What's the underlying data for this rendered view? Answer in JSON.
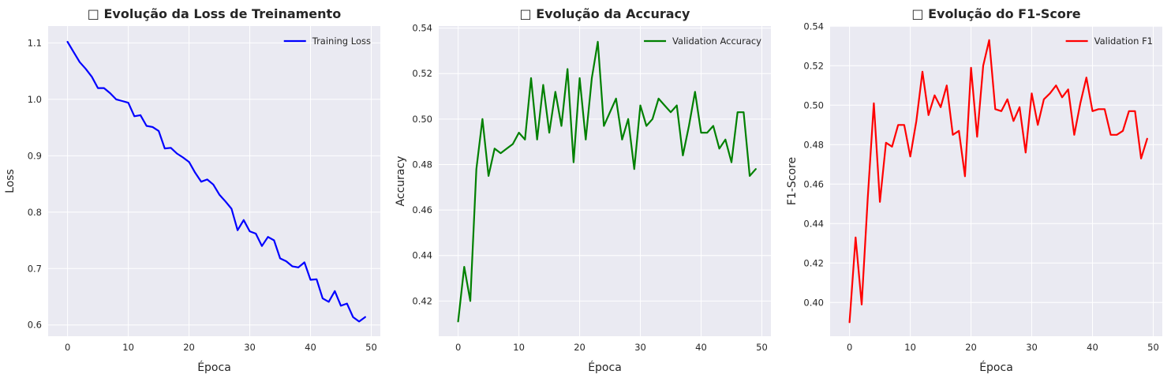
{
  "chart_data": [
    {
      "type": "line",
      "title": "□ Evolução da Loss de Treinamento",
      "xlabel": "Época",
      "ylabel": "Loss",
      "xlim": [
        -3.2,
        51.5
      ],
      "ylim": [
        0.58,
        1.13
      ],
      "xticks": [
        "0",
        "10",
        "20",
        "30",
        "40",
        "50"
      ],
      "yticks": [
        "0.6",
        "0.7",
        "0.8",
        "0.9",
        "1.0",
        "1.1"
      ],
      "grid": true,
      "legend": "top-right",
      "series": [
        {
          "name": "Training Loss",
          "color": "#0000ff",
          "x": [
            0,
            1,
            2,
            3,
            4,
            5,
            6,
            7,
            8,
            9,
            10,
            11,
            12,
            13,
            14,
            15,
            16,
            17,
            18,
            19,
            20,
            21,
            22,
            23,
            24,
            25,
            26,
            27,
            28,
            29,
            30,
            31,
            32,
            33,
            34,
            35,
            36,
            37,
            38,
            39,
            40,
            41,
            42,
            43,
            44,
            45,
            46,
            47,
            48,
            49
          ],
          "values": [
            1.102,
            1.084,
            1.066,
            1.054,
            1.04,
            1.02,
            1.02,
            1.011,
            1.0,
            0.997,
            0.994,
            0.97,
            0.972,
            0.953,
            0.951,
            0.944,
            0.913,
            0.914,
            0.904,
            0.897,
            0.889,
            0.87,
            0.854,
            0.858,
            0.849,
            0.831,
            0.819,
            0.806,
            0.768,
            0.786,
            0.766,
            0.762,
            0.74,
            0.756,
            0.75,
            0.718,
            0.713,
            0.704,
            0.702,
            0.711,
            0.68,
            0.681,
            0.647,
            0.641,
            0.66,
            0.634,
            0.638,
            0.614,
            0.606,
            0.614
          ]
        }
      ]
    },
    {
      "type": "line",
      "title": "□ Evolução da Accuracy",
      "xlabel": "Época",
      "ylabel": "Accuracy",
      "xlim": [
        -3.2,
        51.5
      ],
      "ylim": [
        0.4045,
        0.5409
      ],
      "xticks": [
        "0",
        "10",
        "20",
        "30",
        "40",
        "50"
      ],
      "yticks": [
        "0.42",
        "0.44",
        "0.46",
        "0.48",
        "0.50",
        "0.52",
        "0.54"
      ],
      "grid": true,
      "legend": "top-right",
      "series": [
        {
          "name": "Validation Accuracy",
          "color": "#008000",
          "x": [
            0,
            1,
            2,
            3,
            4,
            5,
            6,
            7,
            8,
            9,
            10,
            11,
            12,
            13,
            14,
            15,
            16,
            17,
            18,
            19,
            20,
            21,
            22,
            23,
            24,
            25,
            26,
            27,
            28,
            29,
            30,
            31,
            32,
            33,
            34,
            35,
            36,
            37,
            38,
            39,
            40,
            41,
            42,
            43,
            44,
            45,
            46,
            47,
            48,
            49
          ],
          "values": [
            0.411,
            0.435,
            0.42,
            0.478,
            0.5,
            0.475,
            0.487,
            0.485,
            0.487,
            0.489,
            0.494,
            0.491,
            0.518,
            0.491,
            0.515,
            0.494,
            0.512,
            0.497,
            0.522,
            0.481,
            0.518,
            0.491,
            0.518,
            0.534,
            0.497,
            0.503,
            0.509,
            0.491,
            0.5,
            0.478,
            0.506,
            0.497,
            0.5,
            0.509,
            0.506,
            0.503,
            0.506,
            0.484,
            0.497,
            0.512,
            0.494,
            0.494,
            0.497,
            0.487,
            0.491,
            0.481,
            0.503,
            0.503,
            0.475,
            0.478
          ]
        }
      ]
    },
    {
      "type": "line",
      "title": "□ Evolução do F1-Score",
      "xlabel": "Época",
      "ylabel": "F1-Score",
      "xlim": [
        -3.2,
        51.5
      ],
      "ylim": [
        0.3829,
        0.5401
      ],
      "xticks": [
        "0",
        "10",
        "20",
        "30",
        "40",
        "50"
      ],
      "yticks": [
        "0.40",
        "0.42",
        "0.44",
        "0.46",
        "0.48",
        "0.50",
        "0.52",
        "0.54"
      ],
      "grid": true,
      "legend": "top-right",
      "series": [
        {
          "name": "Validation F1",
          "color": "#ff0000",
          "x": [
            0,
            1,
            2,
            3,
            4,
            5,
            6,
            7,
            8,
            9,
            10,
            11,
            12,
            13,
            14,
            15,
            16,
            17,
            18,
            19,
            20,
            21,
            22,
            23,
            24,
            25,
            26,
            27,
            28,
            29,
            30,
            31,
            32,
            33,
            34,
            35,
            36,
            37,
            38,
            39,
            40,
            41,
            42,
            43,
            44,
            45,
            46,
            47,
            48,
            49
          ],
          "values": [
            0.39,
            0.433,
            0.399,
            0.453,
            0.501,
            0.451,
            0.481,
            0.479,
            0.49,
            0.49,
            0.474,
            0.492,
            0.517,
            0.495,
            0.505,
            0.499,
            0.51,
            0.485,
            0.487,
            0.464,
            0.519,
            0.484,
            0.52,
            0.533,
            0.498,
            0.497,
            0.503,
            0.492,
            0.499,
            0.476,
            0.506,
            0.49,
            0.503,
            0.506,
            0.51,
            0.504,
            0.508,
            0.485,
            0.501,
            0.514,
            0.497,
            0.498,
            0.498,
            0.485,
            0.485,
            0.487,
            0.497,
            0.497,
            0.473,
            0.483
          ]
        }
      ]
    }
  ]
}
